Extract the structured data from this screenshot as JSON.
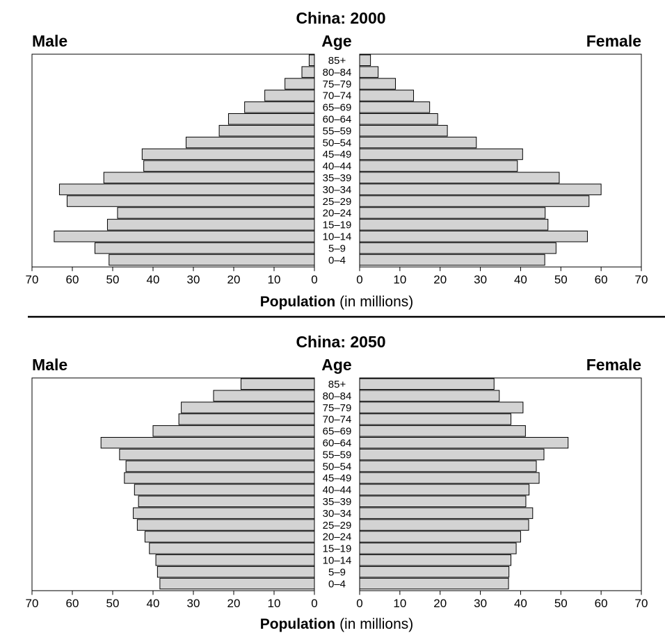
{
  "chart_data": [
    {
      "type": "bar",
      "title": "China: 2000",
      "left_label": "Male",
      "right_label": "Female",
      "center_label": "Age",
      "xlabel_bold": "Population",
      "xlabel_rest": " (in millions)",
      "xlim": [
        0,
        70
      ],
      "ticks": [
        0,
        10,
        20,
        30,
        40,
        50,
        60,
        70
      ],
      "bar_color": "#d3d3d3",
      "categories": [
        "85+",
        "80–84",
        "75–79",
        "70–74",
        "65–69",
        "60–64",
        "55–59",
        "50–54",
        "45–49",
        "40–44",
        "35–39",
        "30–34",
        "25–29",
        "20–24",
        "15–19",
        "10–14",
        "5–9",
        "0–4"
      ],
      "series": [
        {
          "name": "Male",
          "values": [
            1.3,
            3.1,
            7.3,
            12.3,
            17.3,
            21.3,
            23.6,
            31.8,
            42.7,
            42.3,
            52.2,
            63.2,
            61.3,
            48.8,
            51.3,
            64.5,
            54.4,
            50.9
          ]
        },
        {
          "name": "Female",
          "values": [
            2.7,
            4.6,
            8.9,
            13.4,
            17.4,
            19.4,
            21.8,
            29.0,
            40.5,
            39.2,
            49.6,
            60.0,
            57.0,
            46.1,
            46.8,
            56.6,
            48.8,
            46.0
          ]
        }
      ]
    },
    {
      "type": "bar",
      "title": "China: 2050",
      "left_label": "Male",
      "right_label": "Female",
      "center_label": "Age",
      "xlabel_bold": "Population",
      "xlabel_rest": " (in millions)",
      "xlim": [
        0,
        70
      ],
      "ticks": [
        0,
        10,
        20,
        30,
        40,
        50,
        60,
        70
      ],
      "bar_color": "#d3d3d3",
      "categories": [
        "85+",
        "80–84",
        "75–79",
        "70–74",
        "65–69",
        "60–64",
        "55–59",
        "50–54",
        "45–49",
        "40–44",
        "35–39",
        "30–34",
        "25–29",
        "20–24",
        "15–19",
        "10–14",
        "5–9",
        "0–4"
      ],
      "series": [
        {
          "name": "Male",
          "values": [
            18.2,
            25.0,
            33.0,
            33.6,
            40.0,
            52.9,
            48.3,
            46.7,
            47.1,
            44.6,
            43.6,
            44.9,
            43.9,
            42.0,
            40.9,
            39.3,
            38.9,
            38.3
          ]
        },
        {
          "name": "Female",
          "values": [
            33.4,
            34.7,
            40.6,
            37.6,
            41.2,
            51.8,
            45.8,
            43.9,
            44.6,
            42.1,
            41.3,
            43.0,
            42.0,
            40.0,
            38.9,
            37.6,
            37.1,
            37.0
          ]
        }
      ]
    }
  ]
}
